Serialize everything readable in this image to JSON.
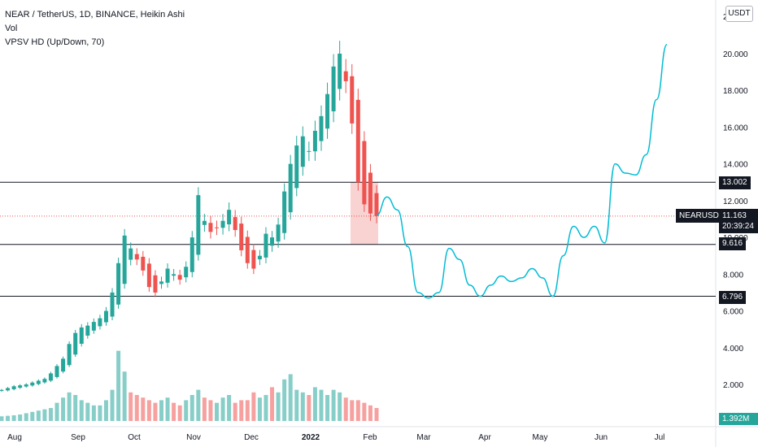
{
  "legend": {
    "title": "NEAR / TetherUS, 1D, BINANCE, Heikin Ashi",
    "line2": "Vol",
    "line3": "VPSV HD (Up/Down, 70)"
  },
  "currency": "USDT",
  "symbol": "NEARUSDT",
  "current_price": "11.163",
  "countdown": "20:39:24",
  "volume_label": "1.392M",
  "levels": [
    {
      "value": 13.002,
      "label": "13.002"
    },
    {
      "value": 9.616,
      "label": "9.616"
    },
    {
      "value": 6.796,
      "label": "6.796"
    }
  ],
  "top_axis_stub": "2",
  "colors": {
    "up": "#26a69a",
    "down": "#ef5350",
    "projection": "#00bcd4",
    "level_line": "#131722",
    "price_line": "#ef5350",
    "highlight": "#f8c7c7"
  },
  "chart_data": {
    "type": "candlestick",
    "title": "NEAR / TetherUS, 1D, BINANCE, Heikin Ashi",
    "x_axis_ticks": [
      "Aug",
      "Sep",
      "Oct",
      "Nov",
      "Dec",
      "2022",
      "Feb",
      "Mar",
      "Apr",
      "May",
      "Jun",
      "Jul"
    ],
    "y_axis_ticks": [
      2.0,
      4.0,
      6.0,
      8.0,
      10.0,
      12.0,
      14.0,
      16.0,
      18.0,
      20.0
    ],
    "y_tick_labels": [
      "2.000",
      "4.000",
      "6.000",
      "8.000",
      "10.000",
      "12.000",
      "14.000",
      "16.000",
      "18.000",
      "20.000"
    ],
    "ylim": [
      0.7,
      22.0
    ],
    "price_closes_approx": [
      1.7,
      1.8,
      1.9,
      1.95,
      2.0,
      2.1,
      2.2,
      2.3,
      2.6,
      3.0,
      3.4,
      4.2,
      4.8,
      5.1,
      5.2,
      5.4,
      5.6,
      6.0,
      7.0,
      8.6,
      10.1,
      9.4,
      8.8,
      8.2,
      7.3,
      7.0,
      7.6,
      8.3,
      8.0,
      7.7,
      8.4,
      10.0,
      12.3,
      10.9,
      10.3,
      10.5,
      10.9,
      11.5,
      10.4,
      9.3,
      8.6,
      8.3,
      9.0,
      10.2,
      10.0,
      10.7,
      12.5,
      14.0,
      15.0,
      15.5,
      14.7,
      15.8,
      16.6,
      17.8,
      19.3,
      20.0,
      18.5,
      16.2,
      13.0,
      11.8,
      11.3,
      11.16
    ],
    "volume_approx": [
      0.18,
      0.2,
      0.22,
      0.25,
      0.3,
      0.35,
      0.4,
      0.45,
      0.5,
      0.7,
      0.9,
      1.1,
      1.0,
      0.8,
      0.7,
      0.6,
      0.6,
      0.8,
      1.2,
      2.7,
      1.9,
      1.1,
      1.0,
      0.9,
      0.8,
      0.7,
      0.8,
      0.9,
      0.7,
      0.6,
      0.8,
      1.0,
      1.2,
      0.9,
      0.8,
      0.7,
      0.9,
      1.0,
      0.7,
      0.8,
      0.8,
      1.1,
      0.9,
      1.0,
      1.3,
      1.1,
      1.6,
      1.8,
      1.2,
      1.1,
      1.0,
      1.3,
      1.2,
      1.0,
      1.2,
      1.1,
      0.9,
      0.8,
      0.8,
      0.7,
      0.6,
      0.5
    ],
    "projection_path_approx": [
      [
        11.2
      ],
      [
        12.2
      ],
      [
        11.5
      ],
      [
        9.5
      ],
      [
        7.0
      ],
      [
        6.7
      ],
      [
        7.0
      ],
      [
        9.4
      ],
      [
        8.8
      ],
      [
        7.4
      ],
      [
        6.8
      ],
      [
        7.4
      ],
      [
        7.9
      ],
      [
        7.6
      ],
      [
        7.8
      ],
      [
        8.3
      ],
      [
        7.8
      ],
      [
        6.8
      ],
      [
        9.0
      ],
      [
        10.6
      ],
      [
        10.0
      ],
      [
        10.6
      ],
      [
        9.7
      ],
      [
        14.0
      ],
      [
        13.5
      ],
      [
        13.4
      ],
      [
        14.5
      ],
      [
        17.5
      ],
      [
        20.5
      ]
    ],
    "grid": true,
    "legend_position": "top-left"
  }
}
